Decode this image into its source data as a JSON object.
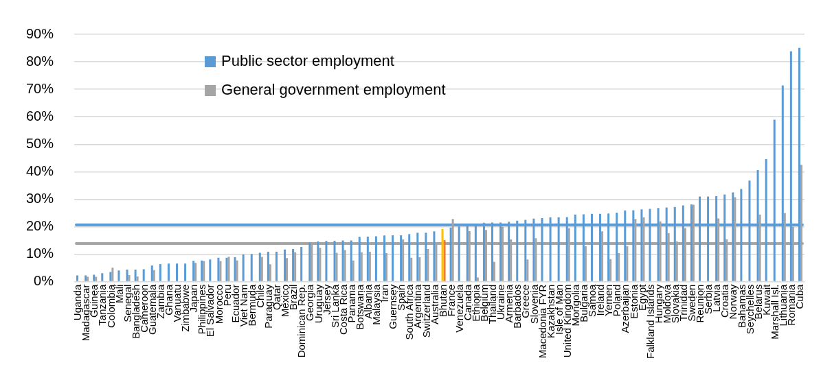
{
  "chart_data": {
    "type": "bar",
    "categories": [
      "Uganda",
      "Madagascar",
      "Guinea",
      "Tanzania",
      "Colombia",
      "Mali",
      "Senegal",
      "Bangladesh",
      "Cameroon",
      "Guatemala",
      "Zambia",
      "Ghana",
      "Vanuatu",
      "Zimbabwe",
      "Japan",
      "Philippines",
      "El Salvador",
      "Morocco",
      "Peru",
      "Ecuador",
      "Viet Nam",
      "Bermuda",
      "Chile",
      "Paraguay",
      "Qatar",
      "Mexico",
      "Brazil",
      "Dominican Rep.",
      "Georgia",
      "Uruguay",
      "Jersey",
      "Sri Lanka",
      "Costa Rica",
      "Panama",
      "Botswana",
      "Albania",
      "Malaysia",
      "Iran",
      "Guernsey",
      "Spain",
      "South Africa",
      "Argentina",
      "Switzerland",
      "Australia",
      "Bhutan",
      "France",
      "Venezuela",
      "Canada",
      "Ethiopia",
      "Belgium",
      "Thailand",
      "Ukraine",
      "Armenia",
      "Barbados",
      "Greece",
      "Slovenia",
      "Macedonia FYR",
      "Kazakhstan",
      "Isle of Man",
      "United Kingdom",
      "Mongolia",
      "Bulgaria",
      "Samoa",
      "Ireland",
      "Yemen",
      "Poland",
      "Azerbaijan",
      "Estonia",
      "Egypt",
      "Falkland Islands",
      "Hungary",
      "Moldova",
      "Slovakia",
      "Trinidad",
      "Sweden",
      "Reunion",
      "Serbia",
      "Latvia",
      "Croatia",
      "Norway",
      "Bahamas",
      "Seychelles",
      "Belarus",
      "Kuwait",
      "Marshall Isl.",
      "Lithuania",
      "Romania",
      "Cuba"
    ],
    "series": [
      {
        "name": "Public sector employment",
        "color": "#5b9bd5",
        "colors": [
          "#5b9bd5",
          "#5b9bd5",
          "#5b9bd5",
          "#5b9bd5",
          "#5b9bd5",
          "#5b9bd5",
          "#5b9bd5",
          "#5b9bd5",
          "#5b9bd5",
          "#5b9bd5",
          "#5b9bd5",
          "#5b9bd5",
          "#5b9bd5",
          "#5b9bd5",
          "#5b9bd5",
          "#5b9bd5",
          "#5b9bd5",
          "#5b9bd5",
          "#5b9bd5",
          "#5b9bd5",
          "#5b9bd5",
          "#5b9bd5",
          "#5b9bd5",
          "#5b9bd5",
          "#5b9bd5",
          "#5b9bd5",
          "#5b9bd5",
          "#5b9bd5",
          "#5b9bd5",
          "#5b9bd5",
          "#5b9bd5",
          "#5b9bd5",
          "#5b9bd5",
          "#5b9bd5",
          "#5b9bd5",
          "#5b9bd5",
          "#5b9bd5",
          "#5b9bd5",
          "#5b9bd5",
          "#5b9bd5",
          "#5b9bd5",
          "#5b9bd5",
          "#5b9bd5",
          "#5b9bd5",
          "#ffc000",
          "#5b9bd5",
          "#5b9bd5",
          "#5b9bd5",
          "#5b9bd5",
          "#5b9bd5",
          "#5b9bd5",
          "#5b9bd5",
          "#5b9bd5",
          "#5b9bd5",
          "#5b9bd5",
          "#5b9bd5",
          "#5b9bd5",
          "#5b9bd5",
          "#5b9bd5",
          "#5b9bd5",
          "#5b9bd5",
          "#5b9bd5",
          "#5b9bd5",
          "#5b9bd5",
          "#5b9bd5",
          "#5b9bd5",
          "#5b9bd5",
          "#5b9bd5",
          "#5b9bd5",
          "#5b9bd5",
          "#5b9bd5",
          "#5b9bd5",
          "#5b9bd5",
          "#5b9bd5",
          "#5b9bd5",
          "#5b9bd5",
          "#5b9bd5",
          "#5b9bd5",
          "#5b9bd5",
          "#5b9bd5",
          "#5b9bd5",
          "#5b9bd5",
          "#5b9bd5",
          "#5b9bd5",
          "#5b9bd5",
          "#5b9bd5",
          "#5b9bd5",
          "#5b9bd5"
        ],
        "values": [
          2.3,
          2.3,
          2.5,
          3.1,
          3.5,
          4.1,
          4.4,
          4.4,
          4.5,
          5.9,
          6.4,
          6.6,
          6.6,
          6.6,
          7.6,
          7.7,
          8.1,
          8.7,
          8.7,
          8.9,
          9.9,
          10.1,
          10.5,
          10.9,
          10.9,
          11.7,
          11.9,
          12.6,
          14.2,
          14.6,
          14.8,
          14.9,
          15,
          15,
          16.3,
          16.4,
          16.5,
          16.8,
          16.9,
          16.9,
          17.3,
          17.8,
          17.8,
          18.3,
          19.1,
          19.7,
          20.2,
          20.4,
          20.6,
          21.4,
          21.5,
          21.5,
          21.8,
          22.2,
          22.5,
          22.9,
          23.1,
          23.4,
          23.4,
          23.5,
          24.4,
          24.5,
          24.7,
          24.7,
          24.8,
          25.1,
          25.9,
          26,
          26.3,
          26.5,
          26.8,
          27,
          27.2,
          27.7,
          28.1,
          31,
          31,
          31.1,
          31.7,
          32.5,
          33.7,
          36.8,
          40.6,
          44.6,
          58.9,
          71.4,
          83.8,
          85.1
        ]
      },
      {
        "name": "General government employment",
        "color": "#a5a5a5",
        "colors": [
          "#a5a5a5",
          "#a5a5a5",
          "#a5a5a5",
          "#a5a5a5",
          "#a5a5a5",
          "#a5a5a5",
          "#a5a5a5",
          "#a5a5a5",
          "#a5a5a5",
          "#a5a5a5",
          "#a5a5a5",
          "#a5a5a5",
          "#a5a5a5",
          "#a5a5a5",
          "#a5a5a5",
          "#a5a5a5",
          "#a5a5a5",
          "#a5a5a5",
          "#a5a5a5",
          "#a5a5a5",
          "#a5a5a5",
          "#a5a5a5",
          "#a5a5a5",
          "#a5a5a5",
          "#a5a5a5",
          "#a5a5a5",
          "#a5a5a5",
          "#a5a5a5",
          "#a5a5a5",
          "#a5a5a5",
          "#a5a5a5",
          "#a5a5a5",
          "#a5a5a5",
          "#a5a5a5",
          "#a5a5a5",
          "#a5a5a5",
          "#a5a5a5",
          "#a5a5a5",
          "#a5a5a5",
          "#a5a5a5",
          "#a5a5a5",
          "#a5a5a5",
          "#a5a5a5",
          "#a5a5a5",
          "#ed7d31",
          "#a5a5a5",
          "#a5a5a5",
          "#a5a5a5",
          "#a5a5a5",
          "#a5a5a5",
          "#a5a5a5",
          "#a5a5a5",
          "#a5a5a5",
          "#a5a5a5",
          "#a5a5a5",
          "#a5a5a5",
          "#a5a5a5",
          "#a5a5a5",
          "#a5a5a5",
          "#a5a5a5",
          "#a5a5a5",
          "#a5a5a5",
          "#a5a5a5",
          "#a5a5a5",
          "#a5a5a5",
          "#a5a5a5",
          "#a5a5a5",
          "#a5a5a5",
          "#a5a5a5",
          "#a5a5a5",
          "#a5a5a5",
          "#a5a5a5",
          "#a5a5a5",
          "#a5a5a5",
          "#a5a5a5",
          "#a5a5a5",
          "#a5a5a5",
          "#a5a5a5",
          "#a5a5a5",
          "#a5a5a5",
          "#a5a5a5",
          "#a5a5a5",
          "#a5a5a5",
          "#a5a5a5",
          "#a5a5a5",
          "#a5a5a5",
          "#a5a5a5",
          "#a5a5a5"
        ],
        "values": [
          null,
          1.8,
          1.8,
          null,
          5.1,
          null,
          2.4,
          1.9,
          null,
          4.2,
          null,
          null,
          null,
          null,
          6.8,
          7.5,
          null,
          7.5,
          9.1,
          7.7,
          null,
          null,
          9,
          6.3,
          null,
          8.6,
          10.7,
          null,
          14,
          12.3,
          null,
          10.5,
          11.5,
          7.7,
          10.7,
          10.9,
          null,
          10.4,
          null,
          15.4,
          8.7,
          8.9,
          11.9,
          13.5,
          15.1,
          22.8,
          null,
          18.4,
          1.5,
          18.8,
          7.2,
          19.9,
          15.4,
          null,
          8.1,
          15.8,
          null,
          null,
          null,
          19.5,
          null,
          12.9,
          null,
          18.3,
          8.2,
          10.4,
          13,
          22.8,
          23.4,
          null,
          21.9,
          17.7,
          14.6,
          19.5,
          28,
          null,
          null,
          23,
          15.4,
          30.7,
          null,
          null,
          24.4,
          null,
          null,
          25,
          20,
          42.5
        ]
      }
    ],
    "ylim": [
      0,
      90
    ],
    "yticks": [
      {
        "value": 0,
        "label": "0%"
      },
      {
        "value": 10,
        "label": "10%"
      },
      {
        "value": 20,
        "label": "20%"
      },
      {
        "value": 30,
        "label": "30%"
      },
      {
        "value": 40,
        "label": "40%"
      },
      {
        "value": 50,
        "label": "50%"
      },
      {
        "value": 60,
        "label": "60%"
      },
      {
        "value": 70,
        "label": "70%"
      },
      {
        "value": 80,
        "label": "80%"
      },
      {
        "value": 90,
        "label": "90%"
      }
    ],
    "ref_lines": [
      {
        "axis": "y",
        "value": 20.7,
        "label": null,
        "color": "#5b9bd5"
      },
      {
        "axis": "y",
        "value": 13.9,
        "label": null,
        "color": "#a5a5a5"
      }
    ],
    "grid": "y",
    "legend": "top left"
  }
}
